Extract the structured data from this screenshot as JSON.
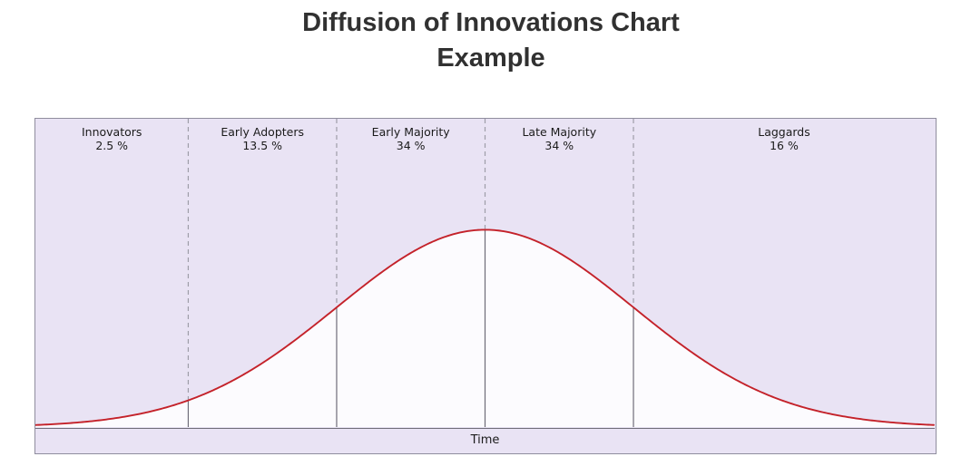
{
  "title": {
    "line1": "Diffusion of Innovations Chart",
    "line2": "Example"
  },
  "chart_data": {
    "type": "area",
    "curve_shape": "gaussian-bell",
    "title": "Diffusion of Innovations Chart Example",
    "xlabel": "Time",
    "ylabel": "",
    "categories": [
      "Innovators",
      "Early Adopters",
      "Early Majority",
      "Late Majority",
      "Laggards"
    ],
    "values": [
      2.5,
      13.5,
      34,
      34,
      16
    ],
    "value_labels": [
      "2.5 %",
      "13.5 %",
      "34 %",
      "34 %",
      "16 %"
    ],
    "segment_boundaries_sigma": [
      -2,
      -1,
      0,
      1
    ],
    "x_range_sigma": [
      -3.03,
      3.03
    ],
    "peak_fraction_of_plot_height": 0.64,
    "grid": false,
    "legend": false
  },
  "colors": {
    "plot_background": "#e9e3f4",
    "under_curve_fill": "#fcfbfe",
    "curve_stroke": "#c4222a",
    "border": "#8f8d9e",
    "axis_line": "#6f6d79",
    "dashed_divider": "#9e9da8",
    "solid_divider": "#6f6d79",
    "title_text": "#313131",
    "label_text": "#1b1b1b"
  }
}
